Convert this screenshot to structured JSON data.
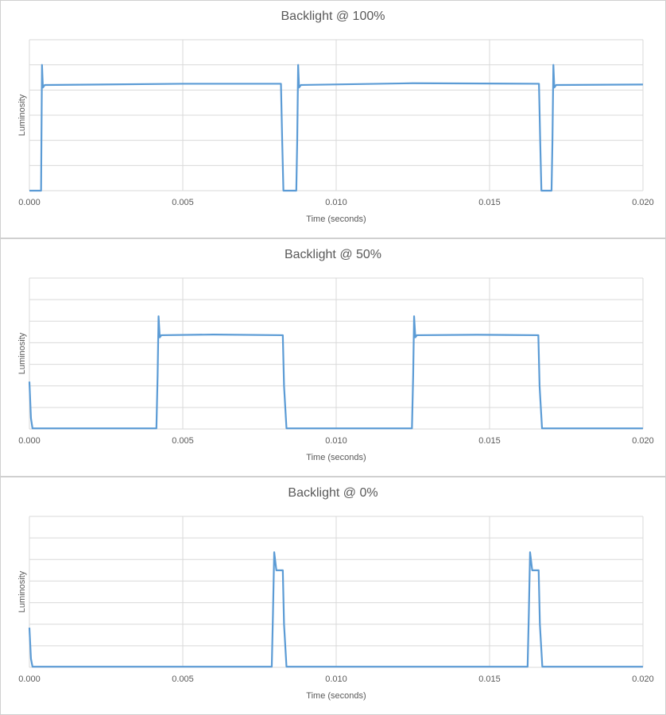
{
  "chart_data": [
    {
      "type": "line",
      "title": "Backlight @ 100%",
      "x_label": "Time (seconds)",
      "y_label": "Luminosity",
      "color": "#5b9bd5",
      "grid": true,
      "x": [
        0,
        0.00038,
        0.00041,
        0.00044,
        0.0005,
        0.005,
        0.0082,
        0.00824,
        0.00828,
        0.0087,
        0.00873,
        0.00876,
        0.00879,
        0.00885,
        0.0125,
        0.01661,
        0.01665,
        0.01669,
        0.01702,
        0.01705,
        0.01708,
        0.01711,
        0.01717,
        0.02
      ],
      "values": [
        0,
        0,
        5.0,
        4.1,
        4.2,
        4.25,
        4.25,
        2,
        0,
        0,
        2,
        5.0,
        4.1,
        4.2,
        4.27,
        4.25,
        2,
        0,
        0,
        2,
        5.0,
        4.1,
        4.2,
        4.22
      ],
      "xlim": [
        0,
        0.02
      ],
      "xticks": [
        {
          "value": 0,
          "label": "0.000"
        },
        {
          "value": 0.005,
          "label": "0.005"
        },
        {
          "value": 0.01,
          "label": "0.010"
        },
        {
          "value": 0.015,
          "label": "0.015"
        },
        {
          "value": 0.02,
          "label": "0.020"
        }
      ],
      "ylim": [
        0,
        6
      ],
      "yticks": [
        0,
        1,
        2,
        3,
        4,
        5,
        6
      ]
    },
    {
      "type": "line",
      "title": "Backlight @ 50%",
      "x_label": "Time (seconds)",
      "y_label": "Luminosity",
      "color": "#5b9bd5",
      "grid": true,
      "x": [
        0,
        5e-05,
        0.0001,
        0.00414,
        0.00418,
        0.00421,
        0.00425,
        0.0043,
        0.006,
        0.00826,
        0.0083,
        0.00838,
        0.01247,
        0.01251,
        0.01254,
        0.01258,
        0.01263,
        0.0146,
        0.01659,
        0.01663,
        0.01671,
        0.02
      ],
      "values": [
        2.2,
        0.5,
        0.03,
        0.03,
        2.5,
        5.23,
        4.25,
        4.35,
        4.38,
        4.35,
        2,
        0.03,
        0.03,
        2.5,
        5.23,
        4.25,
        4.35,
        4.37,
        4.35,
        2,
        0.03,
        0.03
      ],
      "xlim": [
        0,
        0.02
      ],
      "xticks": [
        {
          "value": 0,
          "label": "0.000"
        },
        {
          "value": 0.005,
          "label": "0.005"
        },
        {
          "value": 0.01,
          "label": "0.010"
        },
        {
          "value": 0.015,
          "label": "0.015"
        },
        {
          "value": 0.02,
          "label": "0.020"
        }
      ],
      "ylim": [
        0,
        7
      ],
      "yticks": [
        0,
        1,
        2,
        3,
        4,
        5,
        6,
        7
      ]
    },
    {
      "type": "line",
      "title": "Backlight @ 0%",
      "x_label": "Time (seconds)",
      "y_label": "Luminosity",
      "color": "#5b9bd5",
      "grid": true,
      "x": [
        0,
        5e-05,
        0.0001,
        0.0079,
        0.00794,
        0.00798,
        0.00805,
        0.0081,
        0.00826,
        0.0083,
        0.00838,
        0.01624,
        0.01628,
        0.01632,
        0.01639,
        0.01644,
        0.0166,
        0.01664,
        0.01672,
        0.02
      ],
      "values": [
        1.84,
        0.4,
        0.03,
        0.03,
        2.5,
        5.34,
        4.5,
        4.5,
        4.5,
        2,
        0.03,
        0.03,
        2.5,
        5.34,
        4.5,
        4.5,
        4.5,
        2,
        0.03,
        0.03
      ],
      "xlim": [
        0,
        0.02
      ],
      "xticks": [
        {
          "value": 0,
          "label": "0.000"
        },
        {
          "value": 0.005,
          "label": "0.005"
        },
        {
          "value": 0.01,
          "label": "0.010"
        },
        {
          "value": 0.015,
          "label": "0.015"
        },
        {
          "value": 0.02,
          "label": "0.020"
        }
      ],
      "ylim": [
        0,
        7
      ],
      "yticks": [
        0,
        1,
        2,
        3,
        4,
        5,
        6,
        7
      ]
    }
  ]
}
